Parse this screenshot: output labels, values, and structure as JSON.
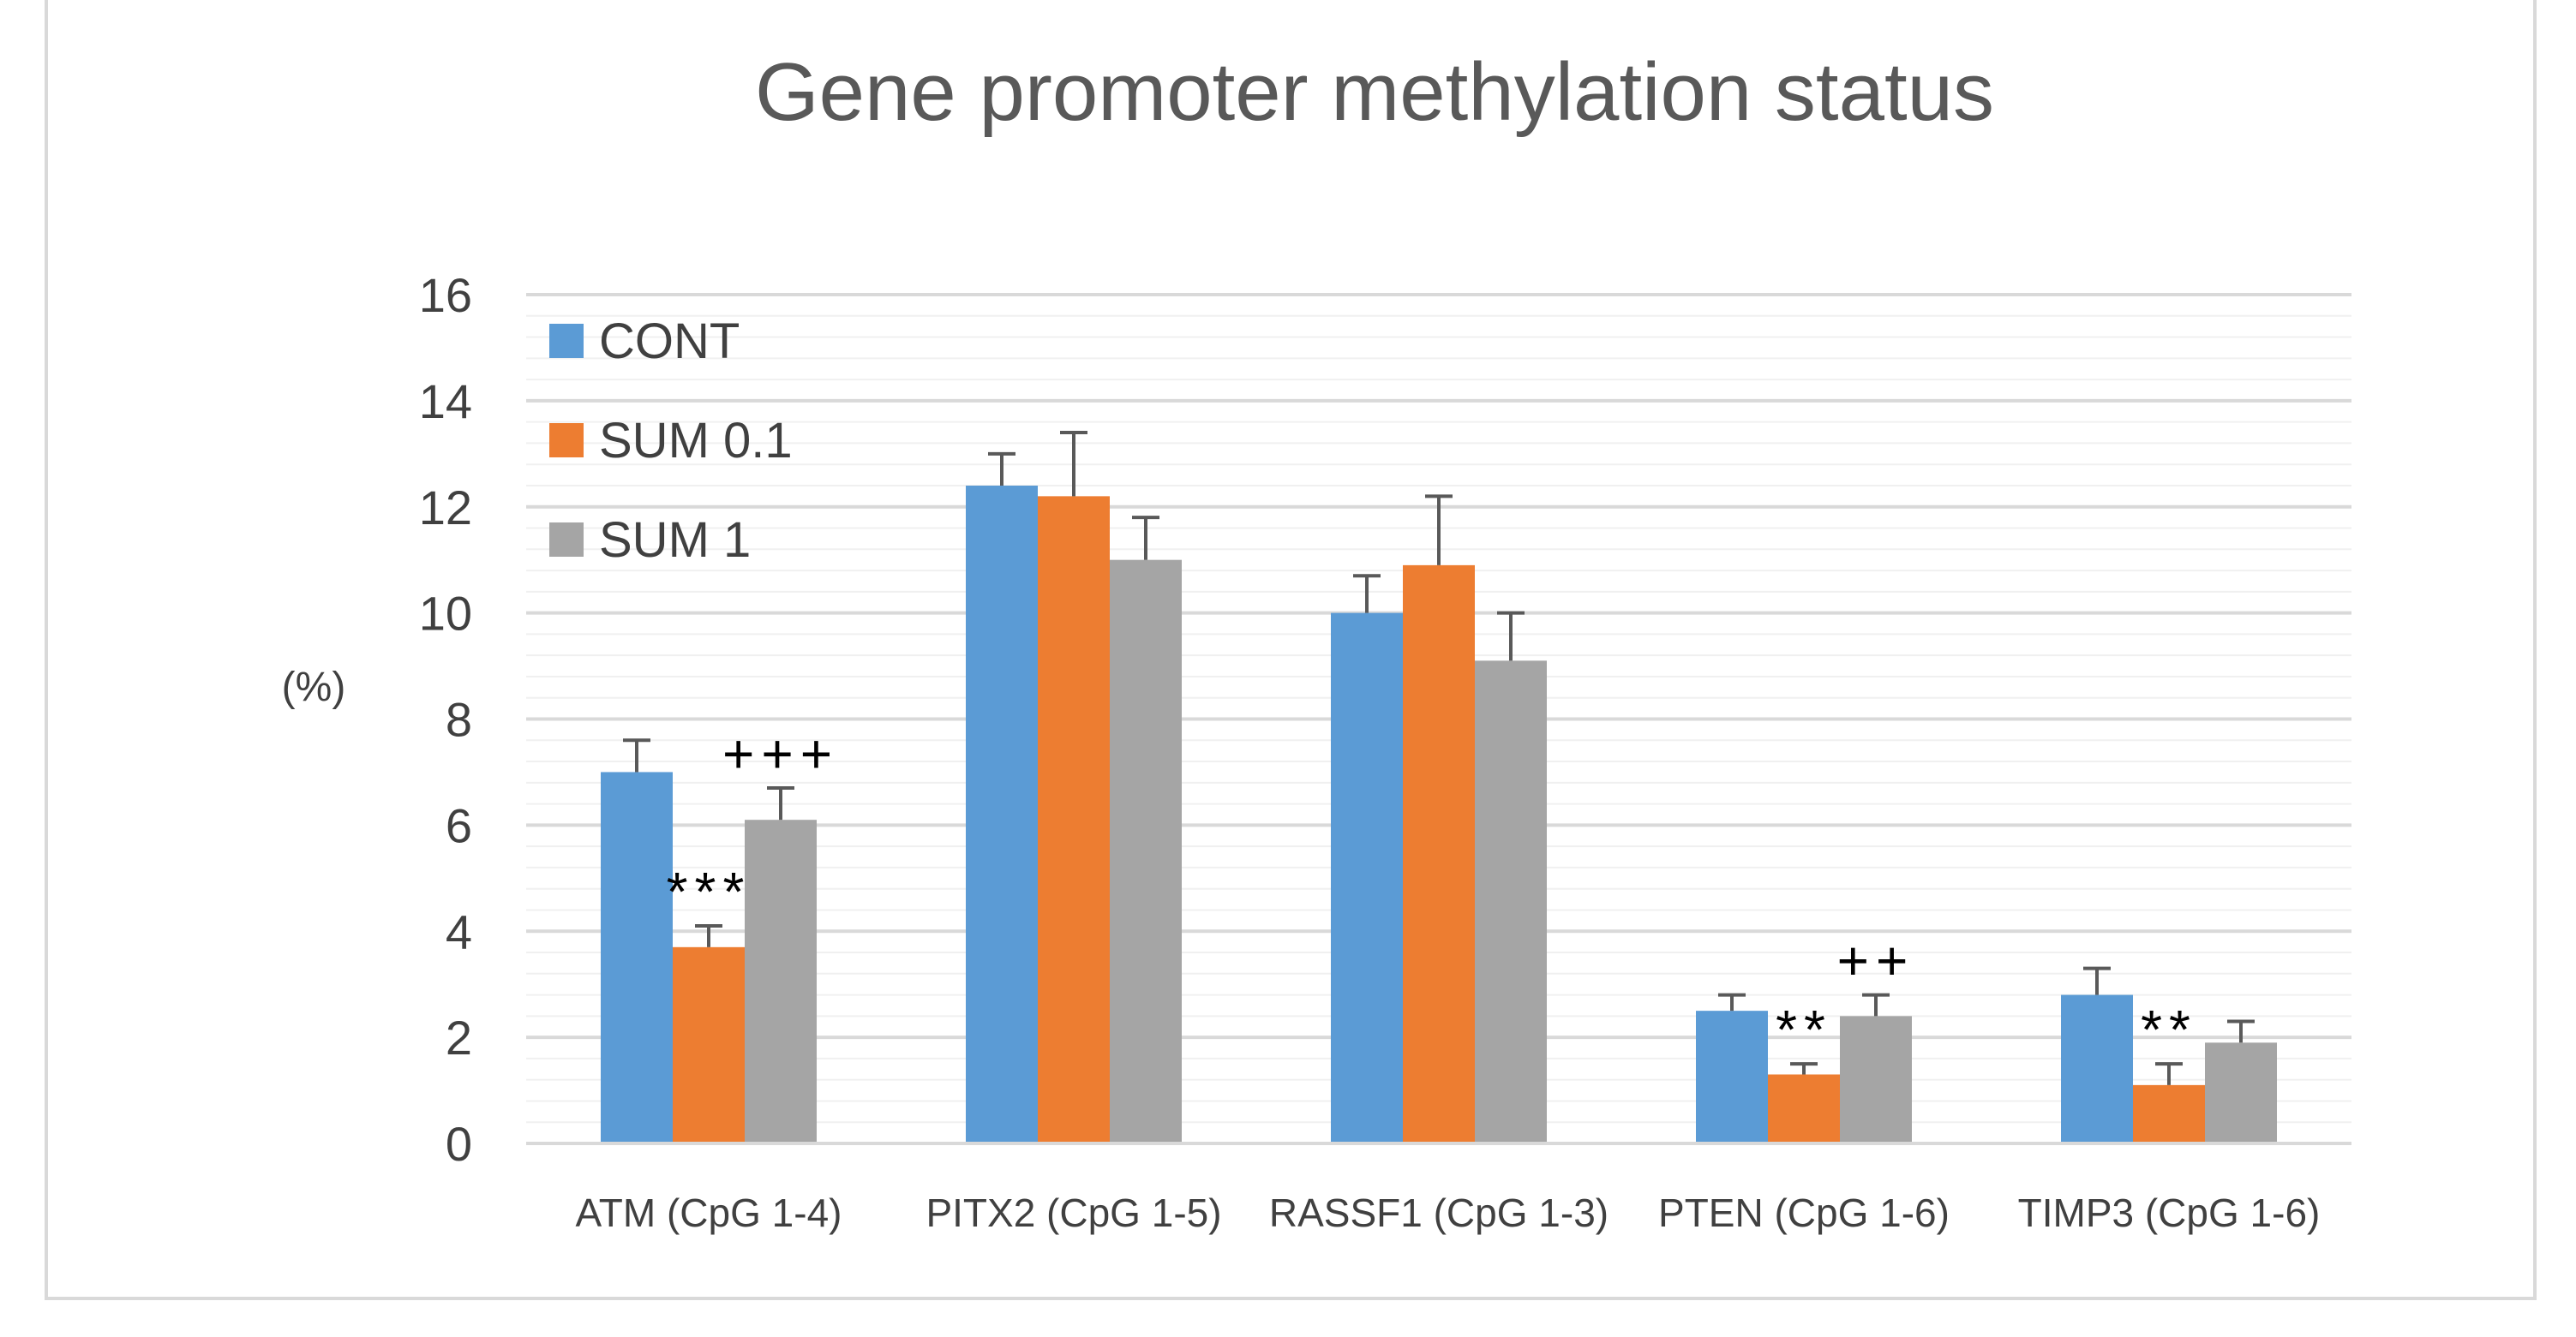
{
  "chart_data": {
    "type": "bar",
    "title": "Gene promoter methylation status",
    "xlabel": "",
    "ylabel": "(%)",
    "ylim": [
      0,
      16
    ],
    "yticks": [
      0,
      2,
      4,
      6,
      8,
      10,
      12,
      14,
      16
    ],
    "grid": true,
    "legend_position": "top-left",
    "categories": [
      "ATM (CpG 1-4)",
      "PITX2 (CpG 1-5)",
      "RASSF1 (CpG 1-3)",
      "PTEN (CpG 1-6)",
      "TIMP3 (CpG 1-6)"
    ],
    "series": [
      {
        "name": "CONT",
        "color": "#5b9bd5",
        "values": [
          7.0,
          12.4,
          10.0,
          2.5,
          2.8
        ],
        "errors": [
          0.6,
          0.6,
          0.7,
          0.3,
          0.5
        ]
      },
      {
        "name": "SUM 0.1",
        "color": "#ed7d31",
        "values": [
          3.7,
          12.2,
          10.9,
          1.3,
          1.1
        ],
        "errors": [
          0.4,
          1.2,
          1.3,
          0.2,
          0.4
        ]
      },
      {
        "name": "SUM 1",
        "color": "#a5a5a5",
        "values": [
          6.1,
          11.0,
          9.1,
          2.4,
          1.9
        ],
        "errors": [
          0.6,
          0.8,
          0.9,
          0.4,
          0.4
        ]
      }
    ],
    "annotations": [
      {
        "category": 0,
        "series": 1,
        "text": "***"
      },
      {
        "category": 0,
        "series": 2,
        "text": "+++"
      },
      {
        "category": 3,
        "series": 1,
        "text": "**"
      },
      {
        "category": 3,
        "series": 2,
        "text": "++"
      },
      {
        "category": 4,
        "series": 1,
        "text": "**"
      }
    ]
  }
}
